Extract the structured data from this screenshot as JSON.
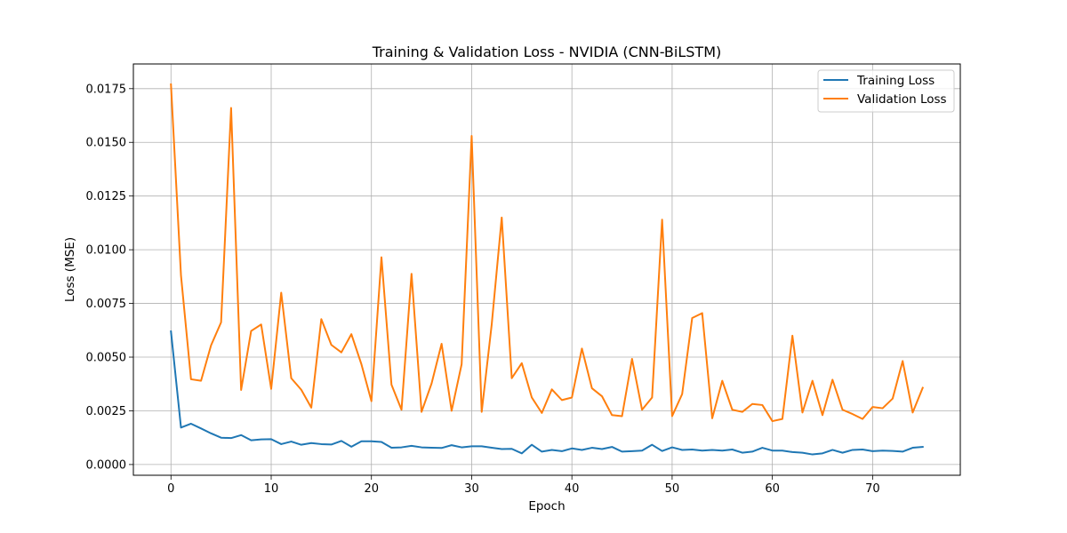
{
  "chart_data": {
    "type": "line",
    "title": "Training & Validation Loss - NVIDIA (CNN-BiLSTM)",
    "xlabel": "Epoch",
    "ylabel": "Loss (MSE)",
    "xlim": [
      -3.75,
      78.75
    ],
    "ylim": [
      -0.0005,
      0.01865
    ],
    "xticks": [
      0,
      10,
      20,
      30,
      40,
      50,
      60,
      70
    ],
    "xtick_labels": [
      "0",
      "10",
      "20",
      "30",
      "40",
      "50",
      "60",
      "70"
    ],
    "yticks": [
      0.0,
      0.0025,
      0.005,
      0.0075,
      0.01,
      0.0125,
      0.015,
      0.0175
    ],
    "ytick_labels": [
      "0.0000",
      "0.0025",
      "0.0050",
      "0.0075",
      "0.0100",
      "0.0125",
      "0.0150",
      "0.0175"
    ],
    "grid": true,
    "legend_position": "top-right",
    "series": [
      {
        "name": "Training Loss",
        "color": "#1f77b4",
        "values": [
          0.0062,
          0.00172,
          0.0019,
          0.00168,
          0.00145,
          0.00125,
          0.00123,
          0.00137,
          0.00113,
          0.00117,
          0.00118,
          0.00095,
          0.00107,
          0.00092,
          0.001,
          0.00095,
          0.00093,
          0.0011,
          0.00083,
          0.00108,
          0.00108,
          0.00105,
          0.00078,
          0.0008,
          0.00087,
          0.0008,
          0.00078,
          0.00077,
          0.0009,
          0.0008,
          0.00085,
          0.00085,
          0.00078,
          0.00072,
          0.00073,
          0.00052,
          0.00092,
          0.0006,
          0.00068,
          0.00062,
          0.00075,
          0.00068,
          0.00078,
          0.00072,
          0.00082,
          0.0006,
          0.00062,
          0.00065,
          0.00092,
          0.00063,
          0.0008,
          0.00068,
          0.0007,
          0.00065,
          0.00068,
          0.00065,
          0.0007,
          0.00055,
          0.0006,
          0.00078,
          0.00065,
          0.00065,
          0.00058,
          0.00055,
          0.00047,
          0.00052,
          0.00068,
          0.00055,
          0.00068,
          0.0007,
          0.00062,
          0.00065,
          0.00063,
          0.0006,
          0.00078,
          0.00082
        ]
      },
      {
        "name": "Validation Loss",
        "color": "#ff7f0e",
        "values": [
          0.0177,
          0.0088,
          0.00397,
          0.0039,
          0.00555,
          0.00662,
          0.0166,
          0.00347,
          0.00622,
          0.00652,
          0.00352,
          0.008,
          0.00402,
          0.00348,
          0.00265,
          0.00677,
          0.00557,
          0.00522,
          0.00607,
          0.00467,
          0.00295,
          0.00965,
          0.00372,
          0.00255,
          0.00888,
          0.00245,
          0.00377,
          0.00562,
          0.0025,
          0.00467,
          0.0153,
          0.00245,
          0.00652,
          0.0115,
          0.00402,
          0.00472,
          0.00312,
          0.0024,
          0.0035,
          0.003,
          0.00312,
          0.0054,
          0.00355,
          0.00318,
          0.0023,
          0.00225,
          0.00492,
          0.00255,
          0.00312,
          0.0114,
          0.00225,
          0.00328,
          0.00682,
          0.00705,
          0.00215,
          0.0039,
          0.00255,
          0.00245,
          0.00282,
          0.00277,
          0.00202,
          0.00212,
          0.006,
          0.00242,
          0.0039,
          0.0023,
          0.00395,
          0.00255,
          0.00235,
          0.00212,
          0.00268,
          0.00262,
          0.00307,
          0.00482,
          0.00242,
          0.00357
        ]
      }
    ]
  }
}
